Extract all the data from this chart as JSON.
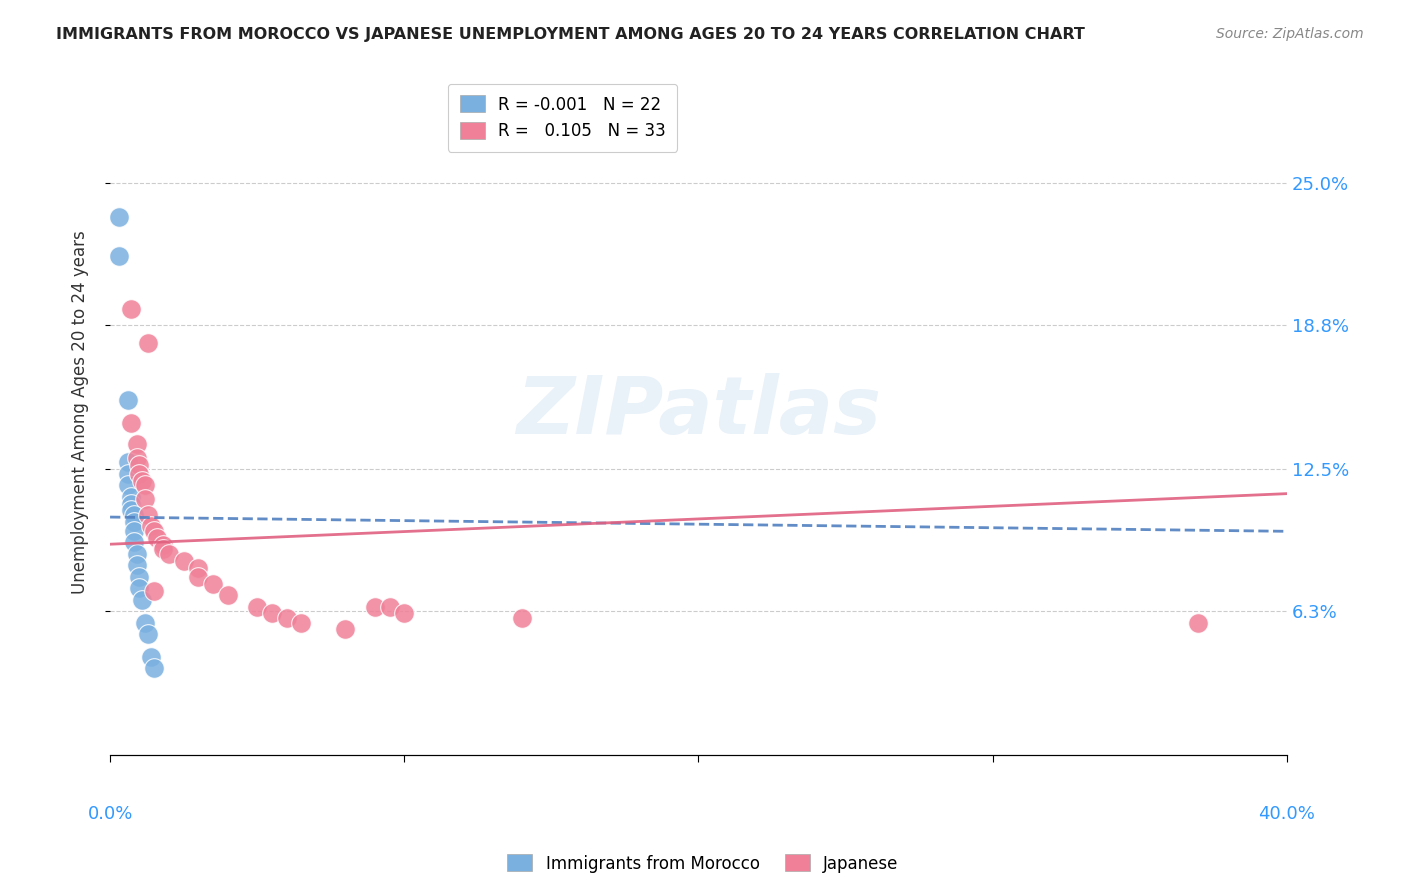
{
  "title": "IMMIGRANTS FROM MOROCCO VS JAPANESE UNEMPLOYMENT AMONG AGES 20 TO 24 YEARS CORRELATION CHART",
  "source": "Source: ZipAtlas.com",
  "ylabel": "Unemployment Among Ages 20 to 24 years",
  "xlim": [
    0.0,
    0.4
  ],
  "ylim": [
    0.0,
    0.3
  ],
  "ytick_labels": [
    "6.3%",
    "12.5%",
    "18.8%",
    "25.0%"
  ],
  "ytick_values": [
    0.063,
    0.125,
    0.188,
    0.25
  ],
  "morocco_color": "#7ab0e0",
  "japanese_color": "#f08098",
  "morocco_line_color": "#5080c0",
  "japanese_line_color": "#e06080",
  "watermark": "ZIPatlas",
  "background_color": "#ffffff",
  "grid_color": "#cccccc",
  "morocco_x": [
    0.003,
    0.003,
    0.006,
    0.006,
    0.006,
    0.006,
    0.007,
    0.007,
    0.007,
    0.008,
    0.008,
    0.008,
    0.008,
    0.009,
    0.009,
    0.01,
    0.01,
    0.011,
    0.012,
    0.013,
    0.014,
    0.015
  ],
  "morocco_y": [
    0.235,
    0.218,
    0.155,
    0.128,
    0.123,
    0.118,
    0.113,
    0.11,
    0.107,
    0.105,
    0.102,
    0.098,
    0.093,
    0.088,
    0.083,
    0.078,
    0.073,
    0.068,
    0.058,
    0.053,
    0.043,
    0.038
  ],
  "japanese_x": [
    0.007,
    0.013,
    0.007,
    0.009,
    0.009,
    0.01,
    0.01,
    0.011,
    0.012,
    0.012,
    0.013,
    0.014,
    0.015,
    0.016,
    0.018,
    0.018,
    0.02,
    0.025,
    0.03,
    0.03,
    0.035,
    0.04,
    0.05,
    0.055,
    0.06,
    0.065,
    0.08,
    0.09,
    0.095,
    0.1,
    0.14,
    0.37,
    0.015
  ],
  "japanese_y": [
    0.195,
    0.18,
    0.145,
    0.136,
    0.13,
    0.127,
    0.123,
    0.12,
    0.118,
    0.112,
    0.105,
    0.1,
    0.098,
    0.095,
    0.092,
    0.09,
    0.088,
    0.085,
    0.082,
    0.078,
    0.075,
    0.07,
    0.065,
    0.062,
    0.06,
    0.058,
    0.055,
    0.065,
    0.065,
    0.062,
    0.06,
    0.058,
    0.072
  ]
}
